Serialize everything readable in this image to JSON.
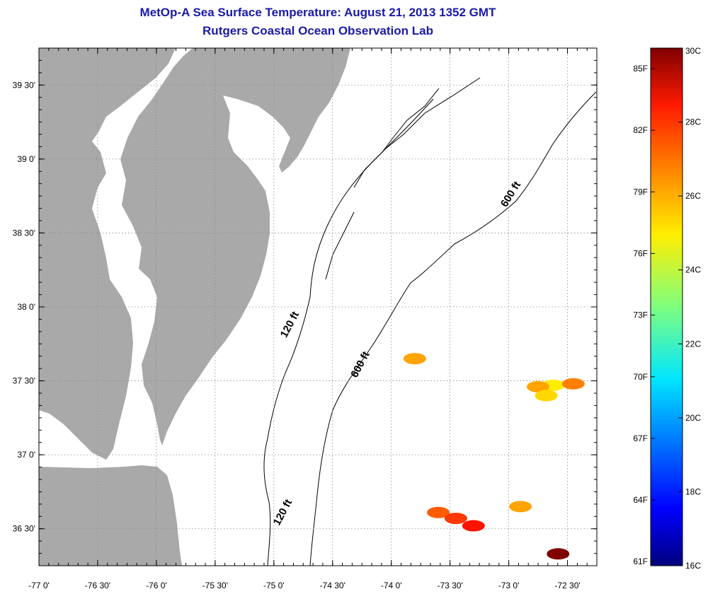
{
  "title": {
    "line1": "MetOp-A Sea Surface Temperature:  August 21, 2013 1352 GMT",
    "line2": "Rutgers Coastal Ocean Observation Lab"
  },
  "map": {
    "lon_range": [
      -77.0,
      -72.25
    ],
    "lat_range": [
      36.25,
      39.75
    ],
    "land_color": "#a9a9a9",
    "ocean_color": "#ffffff",
    "grid": "dotted",
    "lon_ticks": [
      {
        "value": -77.0,
        "label": "-77 0'"
      },
      {
        "value": -76.5,
        "label": "-76 30'"
      },
      {
        "value": -76.0,
        "label": "-76 0'"
      },
      {
        "value": -75.5,
        "label": "-75 30'"
      },
      {
        "value": -75.0,
        "label": "-75 0'"
      },
      {
        "value": -74.5,
        "label": "-74 30'"
      },
      {
        "value": -74.0,
        "label": "-74 0'"
      },
      {
        "value": -73.5,
        "label": "-73 30'"
      },
      {
        "value": -73.0,
        "label": "-73 0'"
      },
      {
        "value": -72.5,
        "label": "-72 30'"
      }
    ],
    "lat_ticks": [
      {
        "value": 39.5,
        "label": "39 30'"
      },
      {
        "value": 39.0,
        "label": "39 0'"
      },
      {
        "value": 38.5,
        "label": "38 30'"
      },
      {
        "value": 38.0,
        "label": "38 0'"
      },
      {
        "value": 37.5,
        "label": "37 30'"
      },
      {
        "value": 37.0,
        "label": "37 0'"
      },
      {
        "value": 36.5,
        "label": "36 30'"
      }
    ],
    "contour_labels": [
      {
        "text": "120 ft",
        "lon": -74.84,
        "lat": 37.87,
        "rotate": -62
      },
      {
        "text": "600 ft",
        "lon": -74.24,
        "lat": 37.6,
        "rotate": -62
      },
      {
        "text": "600 ft",
        "lon": -72.96,
        "lat": 38.75,
        "rotate": -58
      },
      {
        "text": "120 ft",
        "lon": -74.9,
        "lat": 36.6,
        "rotate": -62
      }
    ],
    "sst_patches": [
      {
        "lon": -72.62,
        "lat": 37.47,
        "temp_c": 25.0
      },
      {
        "lon": -72.75,
        "lat": 37.46,
        "temp_c": 26.0
      },
      {
        "lon": -72.45,
        "lat": 37.48,
        "temp_c": 26.5
      },
      {
        "lon": -72.68,
        "lat": 37.4,
        "temp_c": 25.3
      },
      {
        "lon": -73.6,
        "lat": 36.61,
        "temp_c": 27.0
      },
      {
        "lon": -73.45,
        "lat": 36.57,
        "temp_c": 27.5
      },
      {
        "lon": -73.3,
        "lat": 36.52,
        "temp_c": 28.0
      },
      {
        "lon": -72.9,
        "lat": 36.65,
        "temp_c": 26.0
      },
      {
        "lon": -72.58,
        "lat": 36.33,
        "temp_c": 30.0
      },
      {
        "lon": -73.8,
        "lat": 37.65,
        "temp_c": 26.0
      }
    ]
  },
  "colorbar": {
    "min_c": 16,
    "max_c": 30,
    "celsius_labels": [
      {
        "value": 30,
        "label": "30C"
      },
      {
        "value": 28,
        "label": "28C"
      },
      {
        "value": 26,
        "label": "26C"
      },
      {
        "value": 24,
        "label": "24C"
      },
      {
        "value": 22,
        "label": "22C"
      },
      {
        "value": 20,
        "label": "20C"
      },
      {
        "value": 18,
        "label": "18C"
      },
      {
        "value": 16,
        "label": "16C"
      }
    ],
    "fahrenheit_labels": [
      {
        "value": 85,
        "label": "85F"
      },
      {
        "value": 82,
        "label": "82F"
      },
      {
        "value": 79,
        "label": "79F"
      },
      {
        "value": 76,
        "label": "76F"
      },
      {
        "value": 73,
        "label": "73F"
      },
      {
        "value": 70,
        "label": "70F"
      },
      {
        "value": 67,
        "label": "67F"
      },
      {
        "value": 64,
        "label": "64F"
      },
      {
        "value": 61,
        "label": "61F"
      }
    ]
  }
}
